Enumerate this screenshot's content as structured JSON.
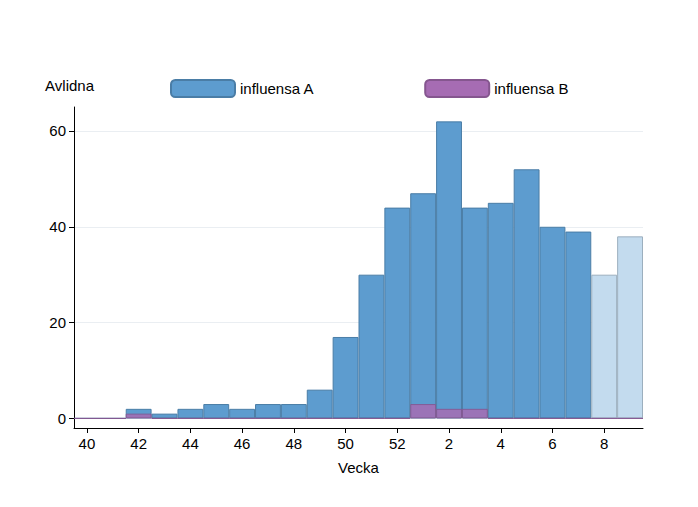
{
  "chart_data": {
    "type": "bar",
    "xlabel": "Vecka",
    "ylabel": "Avlidna",
    "categories": [
      40,
      null,
      42,
      null,
      44,
      null,
      46,
      null,
      48,
      null,
      50,
      null,
      52,
      null,
      2,
      null,
      4,
      null,
      6,
      null,
      8,
      null
    ],
    "series": [
      {
        "name": "influensa A",
        "colors": [
          "#5d9ccf",
          "#5d9ccf",
          "#5d9ccf",
          "#5d9ccf",
          "#5d9ccf",
          "#5d9ccf",
          "#5d9ccf",
          "#5d9ccf",
          "#5d9ccf",
          "#5d9ccf",
          "#5d9ccf",
          "#5d9ccf",
          "#5d9ccf",
          "#5d9ccf",
          "#5d9ccf",
          "#5d9ccf",
          "#5d9ccf",
          "#5d9ccf",
          "#5d9ccf",
          "#5d9ccf",
          "#c3dbee",
          "#c3dbee"
        ],
        "values": [
          0,
          0,
          2,
          1,
          2,
          3,
          2,
          3,
          3,
          6,
          17,
          30,
          44,
          47,
          62,
          44,
          45,
          52,
          40,
          39,
          30,
          38
        ]
      },
      {
        "name": "influensa B",
        "color": "#a66cb3",
        "values": [
          0,
          0,
          1,
          0,
          0,
          0,
          0,
          0,
          0,
          0,
          0,
          0,
          0,
          3,
          2,
          2,
          0,
          0,
          0,
          0,
          0,
          0
        ]
      }
    ],
    "stacked": false,
    "ylim": [
      -2,
      65
    ],
    "yticks": [
      0,
      20,
      40,
      60
    ],
    "grid": true,
    "legend": "top"
  }
}
